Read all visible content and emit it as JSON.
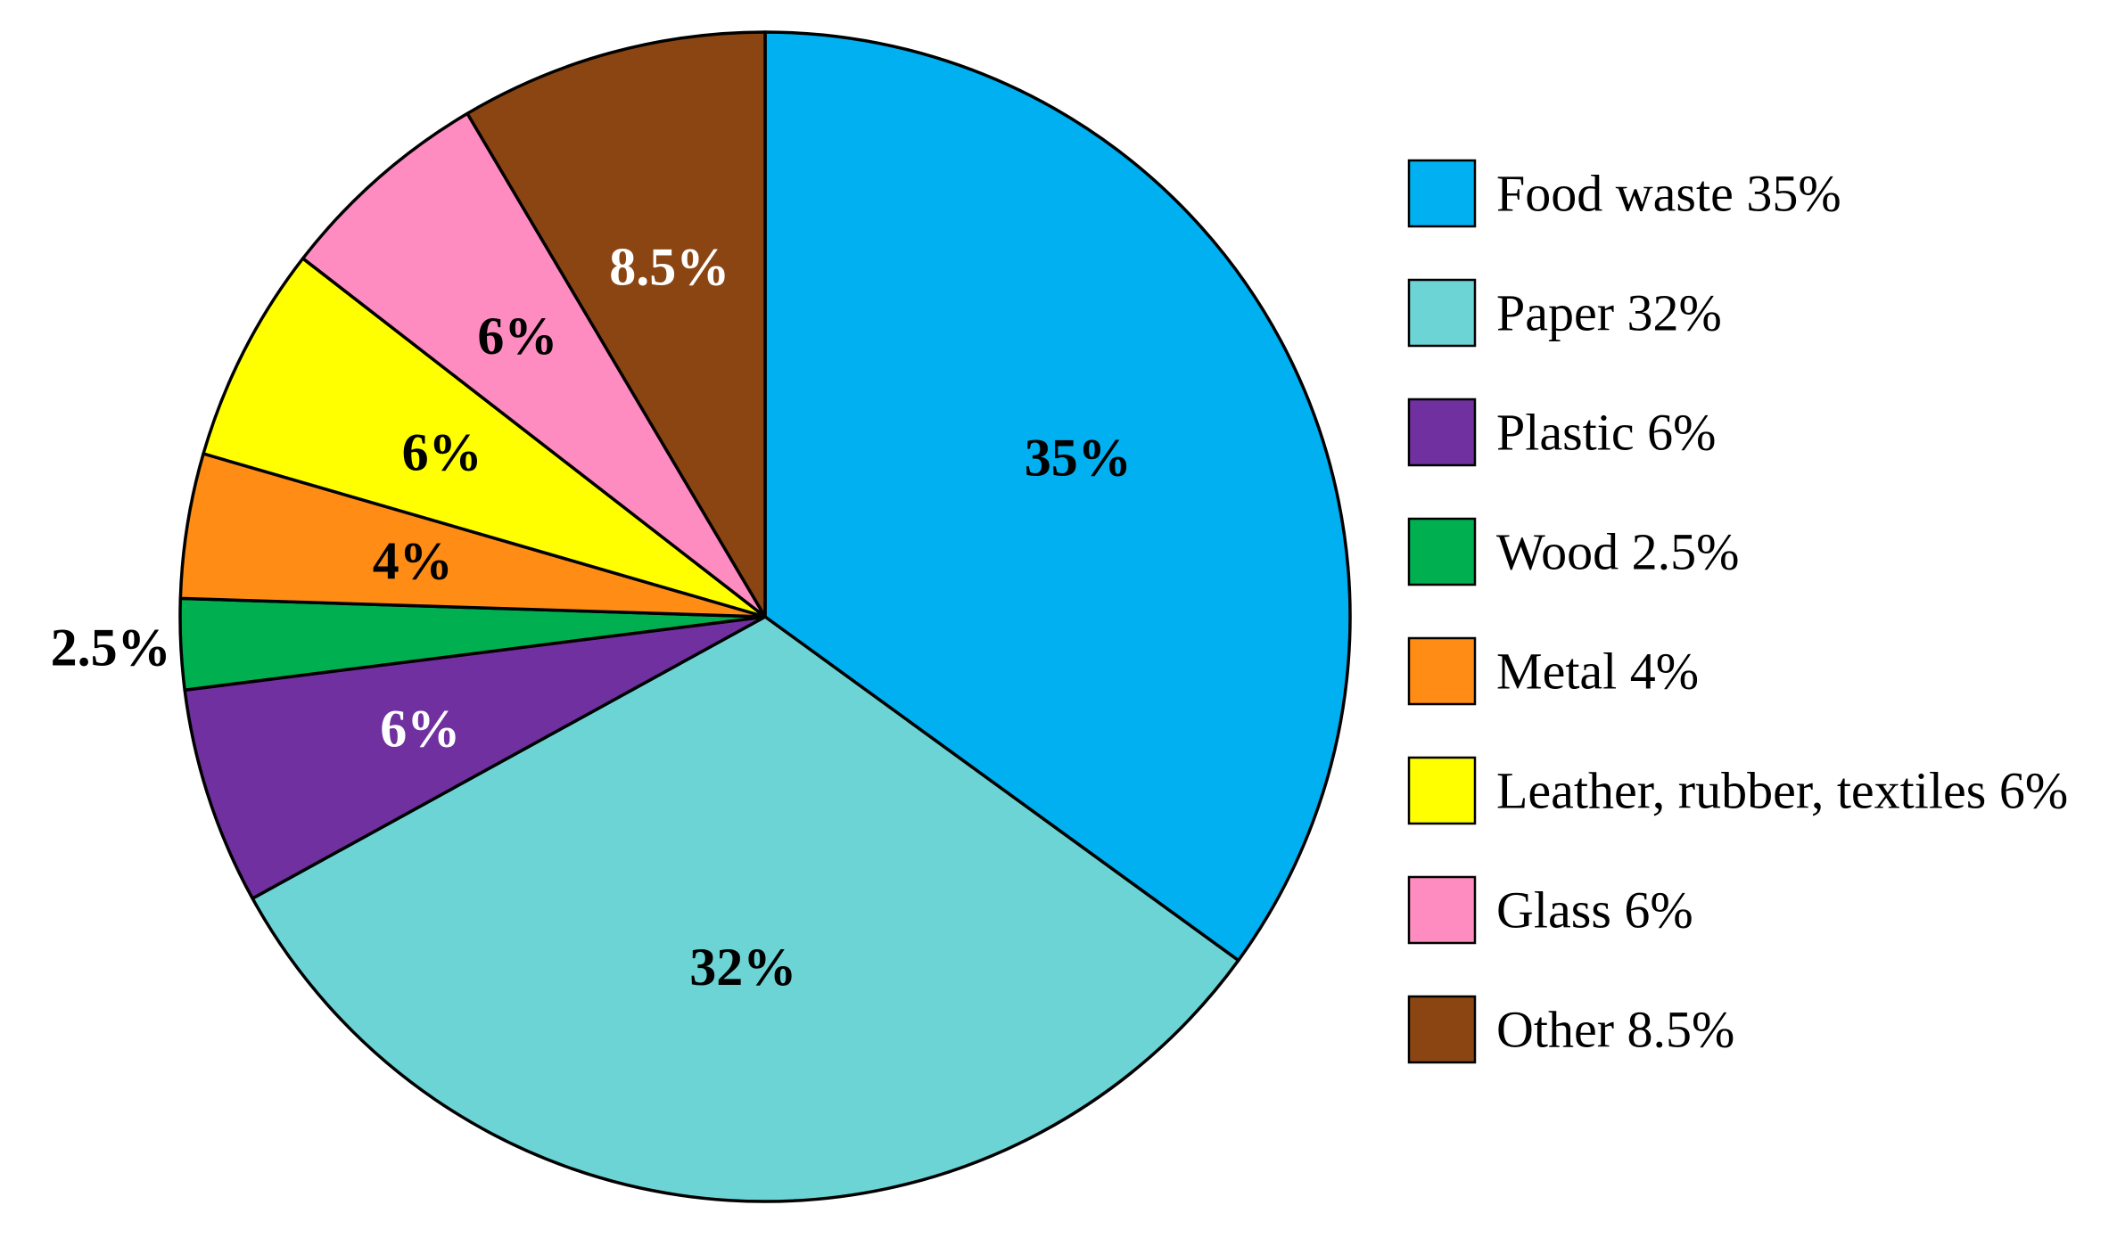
{
  "chart_data": {
    "type": "pie",
    "title": "",
    "slices": [
      {
        "name": "Food waste",
        "value": 35,
        "label": "35%",
        "legend": "Food waste 35%",
        "color": "#00B0F0",
        "label_color": "#000000"
      },
      {
        "name": "Paper",
        "value": 32,
        "label": "32%",
        "legend": "Paper 32%",
        "color": "#6DD4D6",
        "label_color": "#000000"
      },
      {
        "name": "Plastic",
        "value": 6,
        "label": "6%",
        "legend": "Plastic 6%",
        "color": "#7030A0",
        "label_color": "#FFFFFF"
      },
      {
        "name": "Wood",
        "value": 2.5,
        "label": "2.5%",
        "legend": "Wood 2.5%",
        "color": "#00B050",
        "label_color": "#000000"
      },
      {
        "name": "Metal",
        "value": 4,
        "label": "4%",
        "legend": "Metal 4%",
        "color": "#FF8C14",
        "label_color": "#000000"
      },
      {
        "name": "Leather, rubber, textiles",
        "value": 6,
        "label": "6%",
        "legend": "Leather, rubber, textiles 6%",
        "color": "#FFFF00",
        "label_color": "#000000"
      },
      {
        "name": "Glass",
        "value": 6,
        "label": "6%",
        "legend": "Glass 6%",
        "color": "#FF8CC0",
        "label_color": "#000000"
      },
      {
        "name": "Other",
        "value": 8.5,
        "label": "8.5%",
        "legend": "Other 8.5%",
        "color": "#8B4513",
        "label_color": "#FFFFFF"
      }
    ],
    "start_angle_deg": 0,
    "direction": "clockwise",
    "legend_position": "right"
  }
}
